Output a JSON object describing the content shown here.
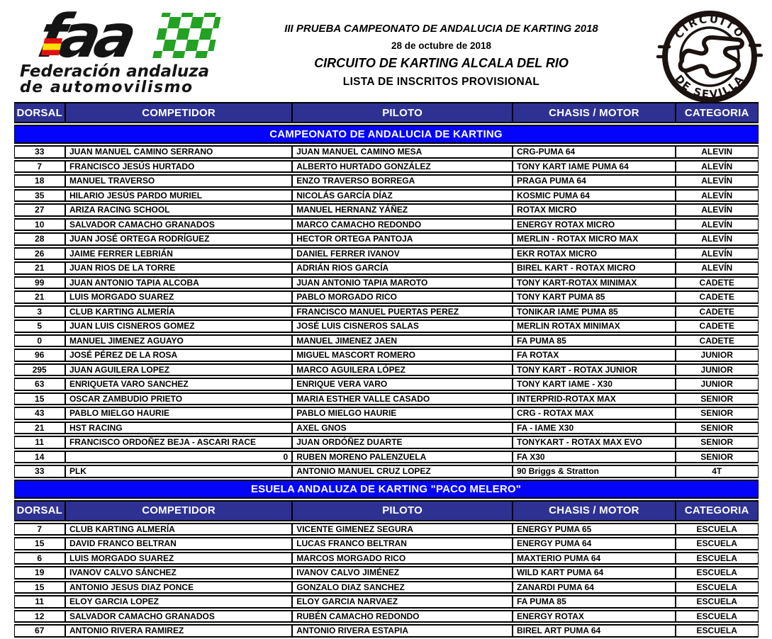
{
  "header": {
    "faa_logo": {
      "acronym": "faa",
      "org_line1": "Federación andaluza",
      "org_line2": "de automovilismo"
    },
    "event": {
      "line1": "III PRUEBA CAMPEONATO DE ANDALUCIA DE KARTING 2018",
      "date": "28 de octubre de 2018",
      "circuit": "CIRCUITO DE KARTING ALCALA DEL RIO",
      "list_title": "LISTA DE INSCRITOS PROVISIONAL"
    },
    "circuit_badge": {
      "top_text": "CIRCUITO",
      "bottom_text": "DE SEVILLA"
    }
  },
  "colors": {
    "column_header_bg": "#2E3192",
    "section_header_bg": "#0404FA",
    "header_text": "#FFFFFF",
    "body_text": "#000000",
    "checker_green": "#23A123",
    "flag_red": "#E01010",
    "flag_yellow": "#FFDF00"
  },
  "table": {
    "columns": [
      "DORSAL",
      "COMPETIDOR",
      "PILOTO",
      "CHASIS / MOTOR",
      "CATEGORIA"
    ],
    "column_widths_pct": [
      6.9,
      30.5,
      29.6,
      21.9,
      11.1
    ],
    "sections": [
      {
        "title": "CAMPEONATO DE ANDALUCIA DE KARTING",
        "rows": [
          [
            "33",
            "JUAN MANUEL CAMINO SERRANO",
            "JUAN MANUEL CAMINO MESA",
            "CRG-PUMA 64",
            "ALEVIN"
          ],
          [
            "7",
            "FRANCISCO JESÚS HURTADO",
            "ALBERTO HURTADO GONZÁLEZ",
            "TONY KART IAME PUMA 64",
            "ALEVÍN"
          ],
          [
            "18",
            "MANUEL TRAVERSO",
            "ENZO TRAVERSO BORREGA",
            "PRAGA PUMA 64",
            "ALEVÍN"
          ],
          [
            "35",
            "HILARIO JESÚS PARDO MURIEL",
            "NICOLÁS GARCÍA DÍAZ",
            "KOSMIC PUMA 64",
            "ALEVÍN"
          ],
          [
            "27",
            "ARIZA RACING SCHOOL",
            "MANUEL HERNANZ YÁÑEZ",
            "ROTAX MICRO",
            "ALEVÍN"
          ],
          [
            "10",
            "SALVADOR CAMACHO GRANADOS",
            "MARCO CAMACHO REDONDO",
            "ENERGY ROTAX MICRO",
            "ALEVÍN"
          ],
          [
            "28",
            "JUAN JOSÉ ORTEGA RODRÍGUEZ",
            "HECTOR ORTEGA PANTOJA",
            "MERLIN - ROTAX MICRO MAX",
            "ALEVÍN"
          ],
          [
            "26",
            "JAIME FERRER LEBRIÁN",
            "DANIEL FERRER IVANOV",
            "EKR ROTAX MICRO",
            "ALEVÍN"
          ],
          [
            "21",
            "JUAN RIOS DE LA TORRE",
            "ADRIÁN RIOS GARCÍA",
            "BIREL KART - ROTAX MICRO",
            "ALEVÍN"
          ],
          [
            "99",
            "JUAN ANTONIO TAPIA ALCOBA",
            "JUAN ANTONIO TAPIA MAROTO",
            "TONY KART-ROTAX MINIMAX",
            "CADETE"
          ],
          [
            "21",
            "LUIS MORGADO SUAREZ",
            "PABLO MORGADO RICO",
            "TONY KART PUMA 85",
            "CADETE"
          ],
          [
            "3",
            "CLUB KARTING ALMERÍA",
            "FRANCISCO MANUEL PUERTAS PEREZ",
            "TONIKAR IAME PUMA 85",
            "CADETE"
          ],
          [
            "5",
            "JUAN LUIS CISNEROS GOMEZ",
            "JOSÉ LUIS CISNEROS SALAS",
            "MERLIN ROTAX MINIMAX",
            "CADETE"
          ],
          [
            "0",
            "MANUEL JIMENEZ AGUAYO",
            "MANUEL JIMENEZ JAEN",
            "FA PUMA 85",
            "CADETE"
          ],
          [
            "96",
            "JOSÉ PÉREZ DE LA ROSA",
            "MIGUEL MASCORT ROMERO",
            "FA ROTAX",
            "JUNIOR"
          ],
          [
            "295",
            "JUAN AGUILERA LOPEZ",
            "MARCO AGUILERA LÓPEZ",
            "TONY KART - ROTAX JUNIOR",
            "JUNIOR"
          ],
          [
            "63",
            "ENRIQUETA VARO SANCHEZ",
            "ENRIQUE VERA VARO",
            "TONY KART IAME - X30",
            "JUNIOR"
          ],
          [
            "15",
            "OSCAR ZAMBUDIO PRIETO",
            "MARIA ESTHER VALLE CASADO",
            "INTERPRID-ROTAX MAX",
            "SENIOR"
          ],
          [
            "43",
            "PABLO MIELGO HAURIE",
            "PABLO MIELGO HAURIE",
            "CRG - ROTAX MAX",
            "SENIOR"
          ],
          [
            "21",
            "HST RACING",
            "AXEL GNOS",
            "FA - IAME X30",
            "SENIOR"
          ],
          [
            "11",
            "FRANCISCO ORDOÑEZ BEJA - ASCARI RACE",
            "JUAN ORDÓÑEZ DUARTE",
            "TONYKART - ROTAX MAX EVO",
            "SENIOR"
          ],
          [
            "14",
            "0",
            "RUBEN MORENO PALENZUELA",
            "FA X30",
            "SENIOR"
          ],
          [
            "33",
            "PLK",
            "ANTONIO MANUEL CRUZ LOPEZ",
            "90 Briggs & Stratton",
            "4T"
          ]
        ],
        "align_overrides": [
          {
            "row": 21,
            "col": 1,
            "align": "right"
          }
        ]
      },
      {
        "title": "ESUELA ANDALUZA DE KARTING \"PACO MELERO\"",
        "rows": [
          [
            "7",
            "CLUB KARTING ALMERÍA",
            "VICENTE GIMENEZ SEGURA",
            "ENERGY PUMA 65",
            "ESCUELA"
          ],
          [
            "15",
            "DAVID FRANCO BELTRAN",
            "LUCAS FRANCO BELTRAN",
            "ENERGY PUMA 64",
            "ESCUELA"
          ],
          [
            "6",
            "LUIS MORGADO SUAREZ",
            "MARCOS MORGADO RICO",
            "MAXTERIO PUMA 64",
            "ESCUELA"
          ],
          [
            "19",
            "IVANOV CALVO SÁNCHEZ",
            "IVANOV CALVO JIMÉNEZ",
            "WILD KART PUMA 64",
            "ESCUELA"
          ],
          [
            "15",
            "ANTONIO JESUS DIAZ PONCE",
            "GONZALO DIAZ SANCHEZ",
            "ZANARDI PUMA 64",
            "ESCUELA"
          ],
          [
            "11",
            "ELOY GARCIA LOPEZ",
            "ELOY GARCIA NARVAEZ",
            "FA PUMA 85",
            "ESCUELA"
          ],
          [
            "12",
            "SALVADOR CAMACHO GRANADOS",
            "RUBÉN CAMACHO REDONDO",
            "ENERGY ROTAX",
            "ESCUELA"
          ],
          [
            "67",
            "ANTONIO RIVERA RAMIREZ",
            "ANTONIO RIVERA ESTAPIA",
            "BIREL ART PUMA 64",
            "ESCUELA"
          ]
        ]
      }
    ]
  }
}
